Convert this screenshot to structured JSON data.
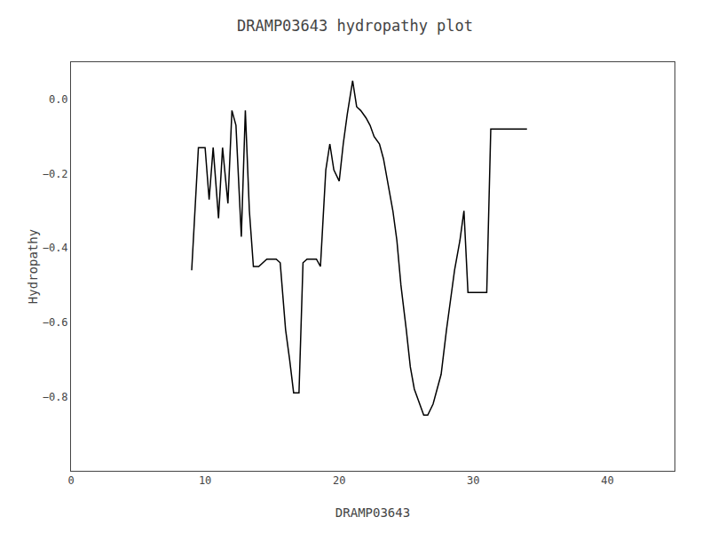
{
  "chart_data": {
    "type": "line",
    "title": "DRAMP03643 hydropathy plot",
    "x_label": "DRAMP03643",
    "y_label": "Hydropathy",
    "x": [
      9,
      9.5,
      10,
      10.3,
      10.6,
      11,
      11.3,
      11.7,
      12,
      12.3,
      12.7,
      13,
      13.3,
      13.6,
      14,
      14.3,
      14.6,
      15,
      15.3,
      15.6,
      16,
      16.3,
      16.6,
      17,
      17.3,
      17.6,
      18,
      18.3,
      18.6,
      19,
      19.3,
      19.6,
      20,
      20.3,
      20.6,
      21,
      21.3,
      21.6,
      22,
      22.3,
      22.6,
      23,
      23.3,
      23.6,
      24,
      24.3,
      24.6,
      25,
      25.3,
      25.6,
      26,
      26.3,
      26.6,
      27,
      27.3,
      27.6,
      28,
      28.3,
      28.6,
      29,
      29.3,
      29.6,
      30,
      30.3,
      30.6,
      31,
      31.3,
      31.6,
      32,
      33,
      34
    ],
    "values": [
      -0.46,
      -0.13,
      -0.13,
      -0.27,
      -0.13,
      -0.32,
      -0.13,
      -0.28,
      -0.03,
      -0.07,
      -0.37,
      -0.03,
      -0.3,
      -0.45,
      -0.45,
      -0.44,
      -0.43,
      -0.43,
      -0.43,
      -0.44,
      -0.62,
      -0.7,
      -0.79,
      -0.79,
      -0.44,
      -0.43,
      -0.43,
      -0.43,
      -0.45,
      -0.19,
      -0.12,
      -0.19,
      -0.22,
      -0.12,
      -0.04,
      0.05,
      -0.02,
      -0.03,
      -0.05,
      -0.07,
      -0.1,
      -0.12,
      -0.16,
      -0.22,
      -0.3,
      -0.38,
      -0.5,
      -0.62,
      -0.72,
      -0.78,
      -0.82,
      -0.85,
      -0.85,
      -0.82,
      -0.78,
      -0.74,
      -0.62,
      -0.54,
      -0.46,
      -0.38,
      -0.3,
      -0.52,
      -0.52,
      -0.52,
      -0.52,
      -0.52,
      -0.08,
      -0.08,
      -0.08,
      -0.08,
      -0.08
    ],
    "color": "black",
    "xlim": [
      0,
      45
    ],
    "ylim": [
      -1.0,
      0.1
    ],
    "xticks": [
      0,
      10,
      20,
      30,
      40
    ],
    "yticks": [
      {
        "value": 0.0,
        "label": "0.0"
      },
      {
        "value": -0.2,
        "label": "−0.2"
      },
      {
        "value": -0.4,
        "label": "−0.4"
      },
      {
        "value": -0.6,
        "label": "−0.6"
      },
      {
        "value": -0.8,
        "label": "−0.8"
      }
    ],
    "grid": false
  }
}
